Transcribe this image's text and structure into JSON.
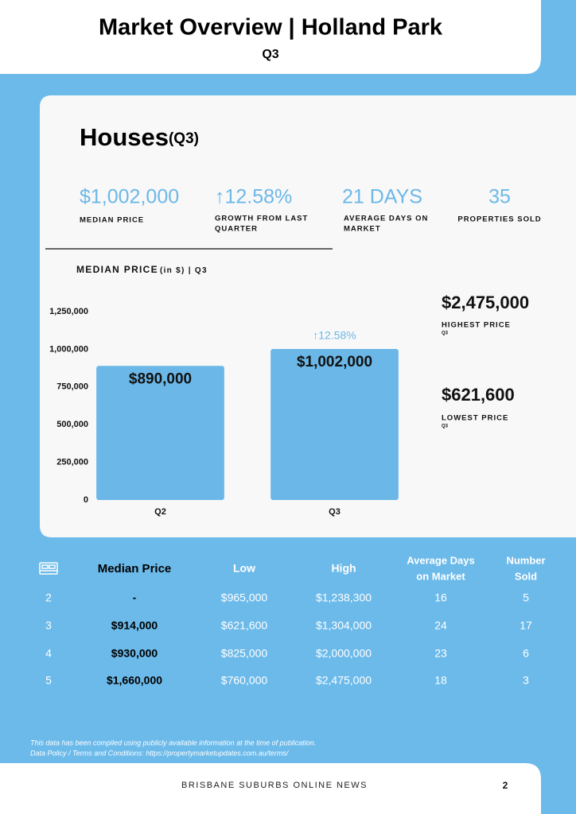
{
  "header": {
    "title": "Market Overview | Holland Park",
    "subtitle": "Q3"
  },
  "section": {
    "title": "Houses",
    "period": "(Q3)"
  },
  "stats": [
    {
      "value": "$1,002,000",
      "label": "MEDIAN PRICE"
    },
    {
      "value": "↑12.58%",
      "label": [
        "GROWTH FROM LAST",
        "QUARTER"
      ]
    },
    {
      "value": "21 DAYS",
      "label": [
        "AVERAGE DAYS ON",
        "MARKET"
      ]
    },
    {
      "value": "35",
      "label": "PROPERTIES SOLD"
    }
  ],
  "chart_data": {
    "type": "bar",
    "title": "MEDIAN PRICE",
    "subtitle": "(in $) | Q3",
    "categories": [
      "Q2",
      "Q3"
    ],
    "values": [
      890000,
      1002000
    ],
    "value_labels": [
      "$890,000",
      "$1,002,000"
    ],
    "color": "#6bb8e8",
    "annotation": "↑12.58%",
    "ylim": [
      0,
      1250000
    ],
    "yticks": [
      0,
      {
        "value": 250000,
        "label": "250,000"
      },
      {
        "value": 500000,
        "label": "500,000"
      },
      {
        "value": 750000,
        "label": "750,000"
      },
      {
        "value": 1000000,
        "label": "1,000,000"
      },
      {
        "value": 1250000,
        "label": "1,250,000"
      }
    ],
    "grid": false
  },
  "side_stats": [
    {
      "value": "$2,475,000",
      "label": "HIGHEST PRICE",
      "period": "Q3"
    },
    {
      "value": "$621,600",
      "label": "LOWEST PRICE",
      "period": "Q3"
    }
  ],
  "table": {
    "header": [
      "Median Price",
      "Low",
      "High",
      [
        "Average Days",
        "on Market"
      ],
      [
        "Number",
        "Sold"
      ]
    ],
    "rows": [
      [
        "2",
        "-",
        "$965,000",
        "$1,238,300",
        "16",
        "5"
      ],
      [
        "3",
        "$914,000",
        "$621,600",
        "$1,304,000",
        "24",
        "17"
      ],
      [
        "4",
        "$930,000",
        "$825,000",
        "$2,000,000",
        "23",
        "6"
      ],
      [
        "5",
        "$1,660,000",
        "$760,000",
        "$2,475,000",
        "18",
        "3"
      ]
    ]
  },
  "footnote": [
    "This data has been compiled using publicly available information at the time of publication.",
    "Data Policy / Terms and Conditions: https://propertymarketupdates.com.au/terms/"
  ],
  "footer": {
    "publisher": "BRISBANE SUBURBS ONLINE NEWS",
    "page": "2"
  }
}
